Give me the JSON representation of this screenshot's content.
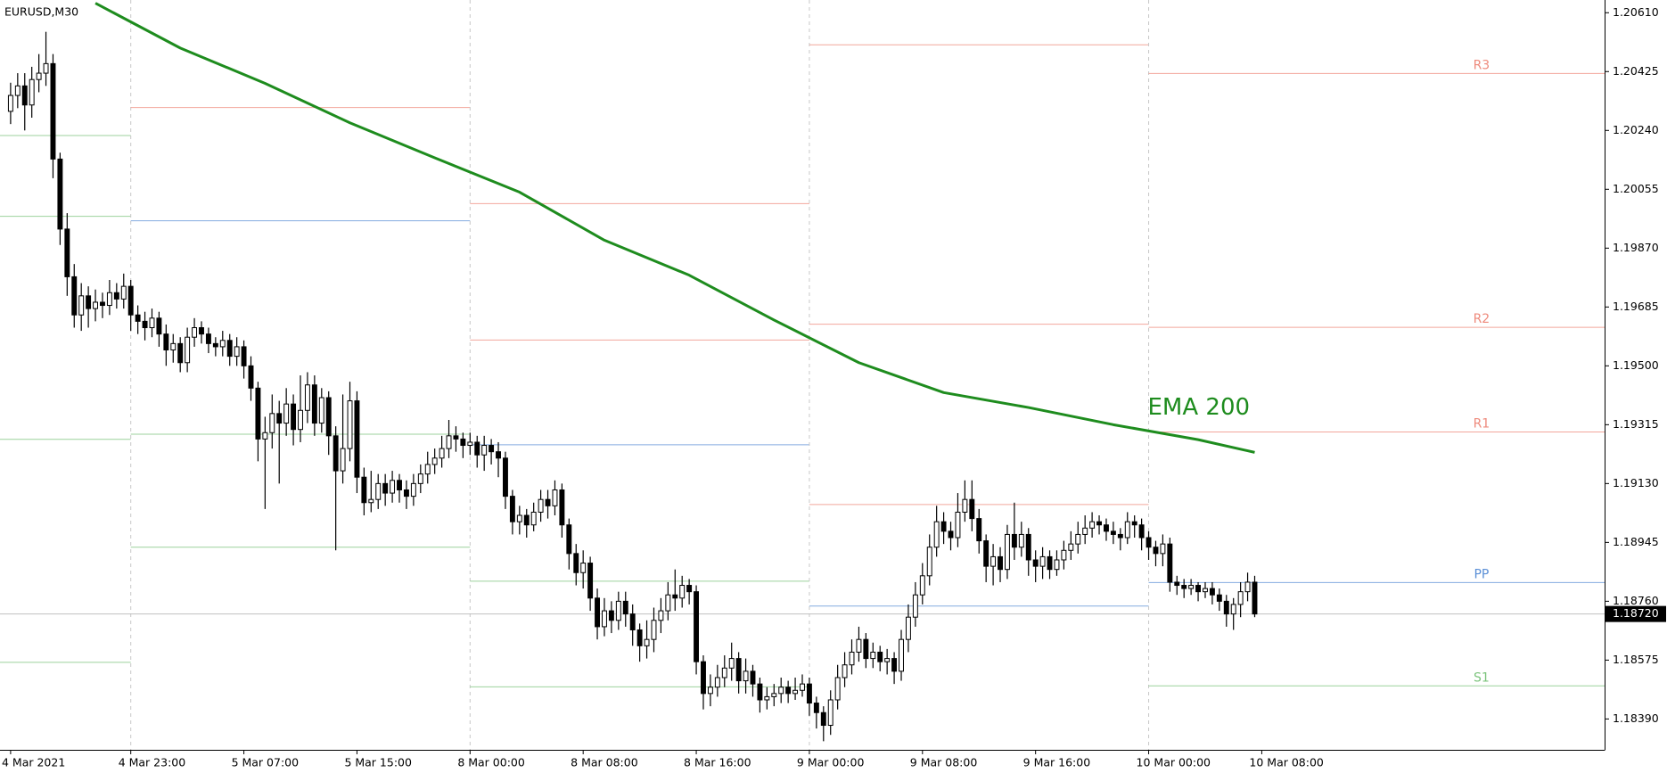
{
  "chart_data": {
    "type": "candlestick",
    "title": "EURUSD,M30",
    "up_color": "#ffffff",
    "down_color": "#000000",
    "xlim": [
      -1.5,
      225.5
    ],
    "ylim": [
      1.18293,
      1.2065
    ],
    "xticks": [
      {
        "value": 0,
        "label": "4 Mar 2021"
      },
      {
        "value": 17,
        "label": "4 Mar 23:00"
      },
      {
        "value": 33,
        "label": "5 Mar 07:00"
      },
      {
        "value": 49,
        "label": "5 Mar 15:00"
      },
      {
        "value": 65,
        "label": "8 Mar 00:00"
      },
      {
        "value": 81,
        "label": "8 Mar 08:00"
      },
      {
        "value": 97,
        "label": "8 Mar 16:00"
      },
      {
        "value": 113,
        "label": "9 Mar 00:00"
      },
      {
        "value": 129,
        "label": "9 Mar 08:00"
      },
      {
        "value": 145,
        "label": "9 Mar 16:00"
      },
      {
        "value": 161,
        "label": "10 Mar 00:00"
      },
      {
        "value": 177,
        "label": "10 Mar 08:00"
      }
    ],
    "yticks": [
      {
        "value": 1.2061,
        "label": "1.20610"
      },
      1.20425,
      {
        "value": 1.2024,
        "label": "1.20240"
      },
      1.20055,
      {
        "value": 1.1987,
        "label": "1.19870"
      },
      1.19685,
      {
        "value": 1.195,
        "label": "1.19500"
      },
      1.19315,
      {
        "value": 1.1913,
        "label": "1.19130"
      },
      1.18945,
      {
        "value": 1.1876,
        "label": "1.18760"
      },
      1.18575,
      {
        "value": 1.1839,
        "label": "1.18390"
      }
    ],
    "last_price": {
      "value": 1.1872,
      "label": "1.18720"
    },
    "candles": [
      [
        1.203,
        1.2039,
        1.2026,
        1.2035
      ],
      [
        1.2035,
        1.2042,
        1.2031,
        1.2038
      ],
      [
        1.2038,
        1.2042,
        1.2024,
        1.2032
      ],
      [
        1.2032,
        1.2044,
        1.2028,
        1.204
      ],
      [
        1.204,
        1.2048,
        1.2036,
        1.2042
      ],
      [
        1.2042,
        1.2055,
        1.2038,
        1.2045
      ],
      [
        1.2045,
        1.2048,
        1.2009,
        1.2015
      ],
      [
        1.2015,
        1.2017,
        1.1988,
        1.1993
      ],
      [
        1.1993,
        1.1998,
        1.1972,
        1.1978
      ],
      [
        1.1978,
        1.1982,
        1.1962,
        1.1966
      ],
      [
        1.1966,
        1.1976,
        1.1961,
        1.1972
      ],
      [
        1.1972,
        1.1975,
        1.1962,
        1.1968
      ],
      [
        1.1968,
        1.1974,
        1.1964,
        1.197
      ],
      [
        1.197,
        1.1973,
        1.1965,
        1.1969
      ],
      [
        1.1969,
        1.1977,
        1.1966,
        1.1973
      ],
      [
        1.1973,
        1.1976,
        1.1968,
        1.1971
      ],
      [
        1.1971,
        1.1979,
        1.1968,
        1.1975
      ],
      [
        1.1975,
        1.1977,
        1.1961,
        1.1966
      ],
      [
        1.1966,
        1.1969,
        1.196,
        1.1964
      ],
      [
        1.1964,
        1.1967,
        1.1958,
        1.1962
      ],
      [
        1.1962,
        1.1968,
        1.1959,
        1.1965
      ],
      [
        1.1965,
        1.1967,
        1.1956,
        1.196
      ],
      [
        1.196,
        1.1963,
        1.195,
        1.1955
      ],
      [
        1.1955,
        1.196,
        1.1951,
        1.1957
      ],
      [
        1.1957,
        1.1959,
        1.1948,
        1.1951
      ],
      [
        1.1951,
        1.1962,
        1.1948,
        1.1959
      ],
      [
        1.1959,
        1.1965,
        1.1956,
        1.1962
      ],
      [
        1.1962,
        1.1964,
        1.1957,
        1.196
      ],
      [
        1.196,
        1.1962,
        1.1954,
        1.1957
      ],
      [
        1.1957,
        1.1959,
        1.1953,
        1.1956
      ],
      [
        1.1956,
        1.1961,
        1.1953,
        1.1958
      ],
      [
        1.1958,
        1.196,
        1.195,
        1.1953
      ],
      [
        1.1953,
        1.1959,
        1.195,
        1.1956
      ],
      [
        1.1956,
        1.1958,
        1.1946,
        1.195
      ],
      [
        1.195,
        1.1953,
        1.1939,
        1.1943
      ],
      [
        1.1943,
        1.1945,
        1.192,
        1.1927
      ],
      [
        1.1927,
        1.1934,
        1.1905,
        1.1929
      ],
      [
        1.1929,
        1.1941,
        1.1924,
        1.1935
      ],
      [
        1.1935,
        1.1939,
        1.1913,
        1.1932
      ],
      [
        1.1932,
        1.1943,
        1.1928,
        1.1938
      ],
      [
        1.1938,
        1.1941,
        1.1925,
        1.193
      ],
      [
        1.193,
        1.1947,
        1.1926,
        1.1936
      ],
      [
        1.1936,
        1.1948,
        1.1932,
        1.1944
      ],
      [
        1.1944,
        1.1947,
        1.1928,
        1.1932
      ],
      [
        1.1932,
        1.1943,
        1.1929,
        1.194
      ],
      [
        1.194,
        1.1942,
        1.1922,
        1.1928
      ],
      [
        1.1928,
        1.1931,
        1.1892,
        1.1917
      ],
      [
        1.1917,
        1.1941,
        1.1913,
        1.1924
      ],
      [
        1.1924,
        1.1945,
        1.192,
        1.1939
      ],
      [
        1.1939,
        1.1942,
        1.191,
        1.1915
      ],
      [
        1.1915,
        1.1918,
        1.1903,
        1.1907
      ],
      [
        1.1907,
        1.1917,
        1.1904,
        1.1908
      ],
      [
        1.1908,
        1.1916,
        1.1905,
        1.1913
      ],
      [
        1.1913,
        1.1916,
        1.1906,
        1.191
      ],
      [
        1.191,
        1.1917,
        1.1907,
        1.1914
      ],
      [
        1.1914,
        1.1916,
        1.1907,
        1.1911
      ],
      [
        1.1911,
        1.1914,
        1.1905,
        1.1909
      ],
      [
        1.1909,
        1.1916,
        1.1906,
        1.1913
      ],
      [
        1.1913,
        1.1919,
        1.191,
        1.1916
      ],
      [
        1.1916,
        1.1923,
        1.1913,
        1.1919
      ],
      [
        1.1919,
        1.1924,
        1.1916,
        1.1921
      ],
      [
        1.1921,
        1.1928,
        1.1918,
        1.1924
      ],
      [
        1.1924,
        1.1933,
        1.1921,
        1.1928
      ],
      [
        1.1928,
        1.1931,
        1.1923,
        1.1927
      ],
      [
        1.1927,
        1.1929,
        1.1921,
        1.1925
      ],
      [
        1.1925,
        1.1929,
        1.1922,
        1.1926
      ],
      [
        1.1926,
        1.1928,
        1.1918,
        1.1922
      ],
      [
        1.1922,
        1.1928,
        1.1917,
        1.1925
      ],
      [
        1.1925,
        1.1927,
        1.1919,
        1.1923
      ],
      [
        1.1923,
        1.1926,
        1.1915,
        1.1921
      ],
      [
        1.1921,
        1.1923,
        1.1905,
        1.1909
      ],
      [
        1.1909,
        1.1911,
        1.1897,
        1.1901
      ],
      [
        1.1901,
        1.1906,
        1.1897,
        1.1903
      ],
      [
        1.1903,
        1.1905,
        1.1896,
        1.19
      ],
      [
        1.19,
        1.1907,
        1.1898,
        1.1904
      ],
      [
        1.1904,
        1.1911,
        1.1901,
        1.1908
      ],
      [
        1.1908,
        1.1911,
        1.1902,
        1.1906
      ],
      [
        1.1906,
        1.1914,
        1.1903,
        1.1911
      ],
      [
        1.1911,
        1.1913,
        1.1896,
        1.19
      ],
      [
        1.19,
        1.1902,
        1.1886,
        1.1891
      ],
      [
        1.1891,
        1.1894,
        1.1881,
        1.1885
      ],
      [
        1.1885,
        1.1892,
        1.188,
        1.1888
      ],
      [
        1.1888,
        1.189,
        1.1873,
        1.1877
      ],
      [
        1.1877,
        1.188,
        1.1864,
        1.1868
      ],
      [
        1.1868,
        1.1877,
        1.1865,
        1.1873
      ],
      [
        1.1873,
        1.1876,
        1.1866,
        1.187
      ],
      [
        1.187,
        1.1879,
        1.1867,
        1.1876
      ],
      [
        1.1876,
        1.1879,
        1.1868,
        1.1872
      ],
      [
        1.1872,
        1.1875,
        1.1862,
        1.1867
      ],
      [
        1.1867,
        1.1869,
        1.1857,
        1.1862
      ],
      [
        1.1862,
        1.187,
        1.1858,
        1.1864
      ],
      [
        1.1864,
        1.1874,
        1.186,
        1.187
      ],
      [
        1.187,
        1.1877,
        1.1866,
        1.1873
      ],
      [
        1.1873,
        1.1882,
        1.187,
        1.1878
      ],
      [
        1.1878,
        1.1886,
        1.1873,
        1.1877
      ],
      [
        1.1877,
        1.1884,
        1.1874,
        1.1881
      ],
      [
        1.1881,
        1.1883,
        1.1875,
        1.1879
      ],
      [
        1.1879,
        1.1881,
        1.1853,
        1.1857
      ],
      [
        1.1857,
        1.1859,
        1.1842,
        1.1847
      ],
      [
        1.1847,
        1.1853,
        1.1843,
        1.1849
      ],
      [
        1.1849,
        1.1856,
        1.1846,
        1.1852
      ],
      [
        1.1852,
        1.1859,
        1.1849,
        1.1855
      ],
      [
        1.1855,
        1.1863,
        1.1851,
        1.1858
      ],
      [
        1.1858,
        1.186,
        1.1847,
        1.1851
      ],
      [
        1.1851,
        1.1858,
        1.1847,
        1.1854
      ],
      [
        1.1854,
        1.1856,
        1.1846,
        1.185
      ],
      [
        1.185,
        1.1852,
        1.1841,
        1.1845
      ],
      [
        1.1845,
        1.1849,
        1.1842,
        1.1846
      ],
      [
        1.1846,
        1.185,
        1.1843,
        1.1847
      ],
      [
        1.1847,
        1.1852,
        1.1844,
        1.1849
      ],
      [
        1.1849,
        1.1851,
        1.1844,
        1.1847
      ],
      [
        1.1847,
        1.1852,
        1.1845,
        1.1848
      ],
      [
        1.1848,
        1.1853,
        1.1846,
        1.185
      ],
      [
        1.185,
        1.1852,
        1.184,
        1.1844
      ],
      [
        1.1844,
        1.1846,
        1.1836,
        1.1841
      ],
      [
        1.1841,
        1.1843,
        1.1832,
        1.1837
      ],
      [
        1.1837,
        1.1848,
        1.1834,
        1.1845
      ],
      [
        1.1845,
        1.1856,
        1.1842,
        1.1852
      ],
      [
        1.1852,
        1.186,
        1.1849,
        1.1856
      ],
      [
        1.1856,
        1.1864,
        1.1853,
        1.186
      ],
      [
        1.186,
        1.1868,
        1.1857,
        1.1864
      ],
      [
        1.1864,
        1.1866,
        1.1855,
        1.1858
      ],
      [
        1.1858,
        1.1863,
        1.1855,
        1.186
      ],
      [
        1.186,
        1.1862,
        1.1854,
        1.1857
      ],
      [
        1.1857,
        1.1861,
        1.1853,
        1.1858
      ],
      [
        1.1858,
        1.186,
        1.185,
        1.1854
      ],
      [
        1.1854,
        1.1867,
        1.1851,
        1.1864
      ],
      [
        1.1864,
        1.1875,
        1.186,
        1.1871
      ],
      [
        1.1871,
        1.1882,
        1.1868,
        1.1878
      ],
      [
        1.1878,
        1.1888,
        1.1875,
        1.1884
      ],
      [
        1.1884,
        1.1897,
        1.1881,
        1.1893
      ],
      [
        1.1893,
        1.1906,
        1.189,
        1.1901
      ],
      [
        1.1901,
        1.1904,
        1.1894,
        1.1898
      ],
      [
        1.1898,
        1.1901,
        1.1892,
        1.1896
      ],
      [
        1.1896,
        1.191,
        1.1893,
        1.1904
      ],
      [
        1.1904,
        1.1914,
        1.1901,
        1.1908
      ],
      [
        1.1908,
        1.1914,
        1.1898,
        1.1902
      ],
      [
        1.1902,
        1.1905,
        1.1891,
        1.1895
      ],
      [
        1.1895,
        1.1897,
        1.1882,
        1.1887
      ],
      [
        1.1887,
        1.1894,
        1.1881,
        1.189
      ],
      [
        1.189,
        1.1893,
        1.1882,
        1.1886
      ],
      [
        1.1886,
        1.19,
        1.1883,
        1.1897
      ],
      [
        1.1897,
        1.1907,
        1.1889,
        1.1893
      ],
      [
        1.1893,
        1.1901,
        1.189,
        1.1897
      ],
      [
        1.1897,
        1.1899,
        1.1884,
        1.1889
      ],
      [
        1.1889,
        1.1892,
        1.1882,
        1.1887
      ],
      [
        1.1887,
        1.1893,
        1.1883,
        1.189
      ],
      [
        1.189,
        1.1892,
        1.1883,
        1.1886
      ],
      [
        1.1886,
        1.1892,
        1.1884,
        1.1889
      ],
      [
        1.1889,
        1.1895,
        1.1886,
        1.1892
      ],
      [
        1.1892,
        1.1898,
        1.1889,
        1.1894
      ],
      [
        1.1894,
        1.1901,
        1.1891,
        1.1897
      ],
      [
        1.1897,
        1.1903,
        1.1894,
        1.1899
      ],
      [
        1.1899,
        1.1904,
        1.1896,
        1.1901
      ],
      [
        1.1901,
        1.1903,
        1.1897,
        1.19
      ],
      [
        1.19,
        1.1902,
        1.1895,
        1.1898
      ],
      [
        1.1898,
        1.1901,
        1.1894,
        1.1897
      ],
      [
        1.1897,
        1.1899,
        1.1892,
        1.1896
      ],
      [
        1.1896,
        1.1904,
        1.1894,
        1.1901
      ],
      [
        1.1901,
        1.1903,
        1.1896,
        1.19
      ],
      [
        1.19,
        1.1902,
        1.1892,
        1.1896
      ],
      [
        1.1896,
        1.1898,
        1.1889,
        1.1893
      ],
      [
        1.1893,
        1.1895,
        1.1887,
        1.1891
      ],
      [
        1.1891,
        1.1897,
        1.1887,
        1.1894
      ],
      [
        1.1894,
        1.1896,
        1.1879,
        1.1882
      ],
      [
        1.1882,
        1.1884,
        1.1878,
        1.1881
      ],
      [
        1.1881,
        1.1883,
        1.1877,
        1.188
      ],
      [
        1.188,
        1.1883,
        1.1878,
        1.1881
      ],
      [
        1.1881,
        1.1882,
        1.1876,
        1.1879
      ],
      [
        1.1879,
        1.1882,
        1.1877,
        1.188
      ],
      [
        1.188,
        1.1882,
        1.1875,
        1.1878
      ],
      [
        1.1878,
        1.188,
        1.1873,
        1.1876
      ],
      [
        1.1876,
        1.1878,
        1.1868,
        1.1872
      ],
      [
        1.1872,
        1.1877,
        1.1867,
        1.1875
      ],
      [
        1.1875,
        1.1882,
        1.1871,
        1.1879
      ],
      [
        1.1879,
        1.1885,
        1.1876,
        1.1882
      ],
      [
        1.1882,
        1.1884,
        1.1871,
        1.1872
      ]
    ],
    "ema": {
      "name": "EMA 200",
      "color": "#1e8c1e",
      "x": [
        12,
        24,
        36,
        48,
        60,
        72,
        84,
        96,
        108,
        120,
        132,
        144,
        156,
        168,
        176
      ],
      "values": [
        1.2064,
        1.20499,
        1.20388,
        1.20264,
        1.20154,
        1.20046,
        1.19895,
        1.19785,
        1.19644,
        1.1951,
        1.19416,
        1.19369,
        1.19315,
        1.19268,
        1.19228
      ]
    },
    "pivots": [
      {
        "start": -1.5,
        "end": 17,
        "levels": [
          {
            "value": 1.20224,
            "color": "#7cc47c"
          },
          {
            "value": 1.1997,
            "color": "#7cc47c"
          },
          {
            "value": 1.19269,
            "color": "#7cc47c"
          },
          {
            "value": 1.18568,
            "color": "#7cc47c"
          }
        ]
      },
      {
        "start": 17,
        "end": 65,
        "levels": [
          {
            "value": 1.20312,
            "color": "#ee8a7c"
          },
          {
            "value": 1.19956,
            "color": "#5b8fd6"
          },
          {
            "value": 1.19285,
            "color": "#7cc47c"
          },
          {
            "value": 1.1893,
            "color": "#7cc47c"
          }
        ]
      },
      {
        "start": 65,
        "end": 113,
        "levels": [
          {
            "value": 1.2001,
            "color": "#ee8a7c"
          },
          {
            "value": 1.19581,
            "color": "#ee8a7c"
          },
          {
            "value": 1.19252,
            "color": "#5b8fd6"
          },
          {
            "value": 1.18823,
            "color": "#7cc47c"
          },
          {
            "value": 1.18491,
            "color": "#7cc47c"
          }
        ]
      },
      {
        "start": 113,
        "end": 161,
        "levels": [
          {
            "value": 1.20509,
            "color": "#ee8a7c"
          },
          {
            "value": 1.19631,
            "color": "#ee8a7c"
          },
          {
            "value": 1.19064,
            "color": "#ee8a7c"
          },
          {
            "value": 1.18745,
            "color": "#5b8fd6"
          }
        ]
      },
      {
        "start": 161,
        "end": 225.5,
        "levels": [
          {
            "value": 1.20419,
            "color": "#ee8a7c",
            "label": "R3"
          },
          {
            "value": 1.19621,
            "color": "#ee8a7c",
            "label": "R2"
          },
          {
            "value": 1.19292,
            "color": "#ee8a7c",
            "label": "R1"
          },
          {
            "value": 1.18819,
            "color": "#5b8fd6",
            "label": "PP"
          },
          {
            "value": 1.18494,
            "color": "#7cc47c",
            "label": "S1"
          }
        ]
      }
    ]
  }
}
